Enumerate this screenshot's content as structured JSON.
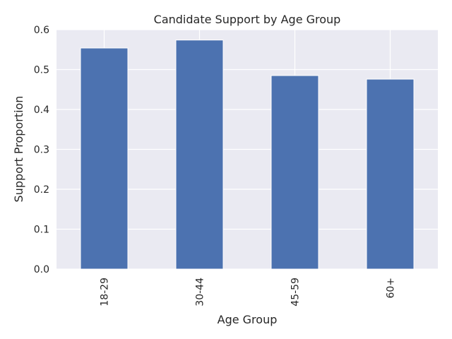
{
  "chart_data": {
    "type": "bar",
    "title": "Candidate Support by Age Group",
    "xlabel": "Age Group",
    "ylabel": "Support Proportion",
    "categories": [
      "18-29",
      "30-44",
      "45-59",
      "60+"
    ],
    "values": [
      0.554,
      0.574,
      0.485,
      0.476
    ],
    "ylim": [
      0,
      0.6
    ],
    "yticks": [
      "0.0",
      "0.1",
      "0.2",
      "0.3",
      "0.4",
      "0.5",
      "0.6"
    ],
    "grid": true,
    "legend": "none",
    "colors": {
      "bar": "#4c72b0",
      "plot_background": "#eaeaf2",
      "grid": "#ffffff"
    }
  }
}
